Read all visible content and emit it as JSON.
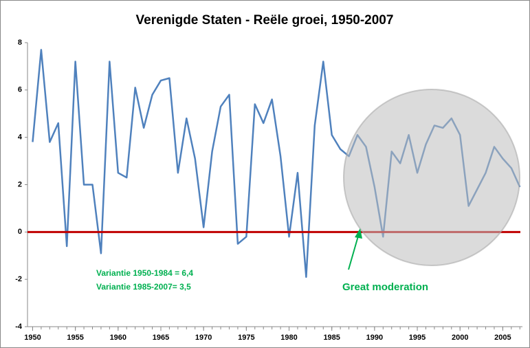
{
  "chart_data": {
    "type": "line",
    "title": "Verenigde Staten - Reële groei, 1950-2007",
    "x": [
      1950,
      1951,
      1952,
      1953,
      1954,
      1955,
      1956,
      1957,
      1958,
      1959,
      1960,
      1961,
      1962,
      1963,
      1964,
      1965,
      1966,
      1967,
      1968,
      1969,
      1970,
      1971,
      1972,
      1973,
      1974,
      1975,
      1976,
      1977,
      1978,
      1979,
      1980,
      1981,
      1982,
      1983,
      1984,
      1985,
      1986,
      1987,
      1988,
      1989,
      1990,
      1991,
      1992,
      1993,
      1994,
      1995,
      1996,
      1997,
      1998,
      1999,
      2000,
      2001,
      2002,
      2003,
      2004,
      2005,
      2006,
      2007
    ],
    "series": [
      {
        "color": "#4f81bd",
        "values": [
          3.8,
          7.7,
          3.8,
          4.6,
          -0.6,
          7.2,
          2.0,
          2.0,
          -0.9,
          7.2,
          2.5,
          2.3,
          6.1,
          4.4,
          5.8,
          6.4,
          6.5,
          2.5,
          4.8,
          3.1,
          0.2,
          3.4,
          5.3,
          5.8,
          -0.5,
          -0.2,
          5.4,
          4.6,
          5.6,
          3.2,
          -0.2,
          2.5,
          -1.9,
          4.5,
          7.2,
          4.1,
          3.5,
          3.2,
          4.1,
          3.6,
          1.9,
          -0.2,
          3.4,
          2.9,
          4.1,
          2.5,
          3.7,
          4.5,
          4.4,
          4.8,
          4.1,
          1.1,
          1.8,
          2.5,
          3.6,
          3.1,
          2.7,
          1.9
        ]
      }
    ],
    "xlim": [
      1949.4,
      2007.3
    ],
    "xticks": [
      1950,
      1955,
      1960,
      1965,
      1970,
      1975,
      1980,
      1985,
      1990,
      1995,
      2000,
      2005
    ],
    "ylim": [
      -4,
      8
    ],
    "yticks": [
      -4,
      -2,
      0,
      2,
      4,
      6,
      8
    ],
    "zero_line_color": "#c00000",
    "annotations": [
      "Variantie 1950-1984 = 6,4",
      "Variantie 1985-2007= 3,5",
      "Great moderation"
    ],
    "annotation_color": "#00b050"
  }
}
